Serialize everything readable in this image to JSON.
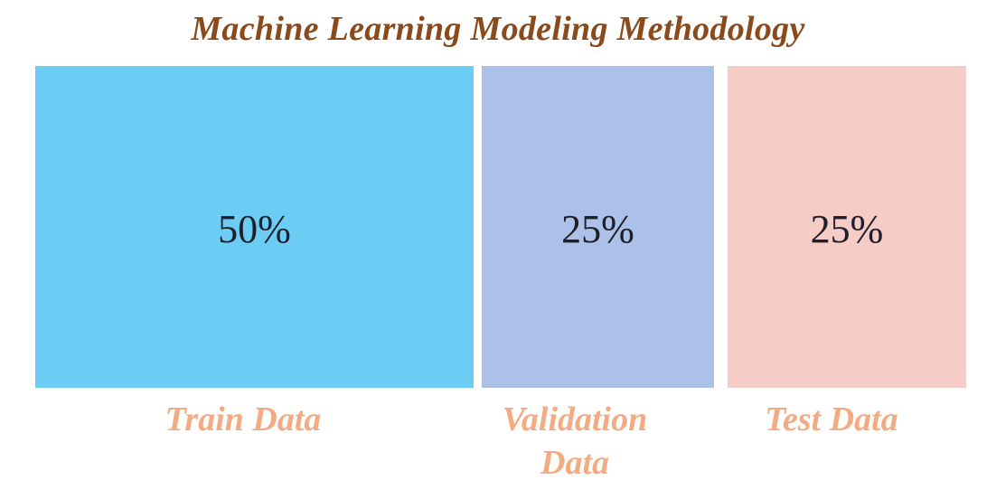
{
  "title": "Machine Learning Modeling Methodology",
  "colors": {
    "title": "#8a4a1c",
    "label": "#f2ab82",
    "train": "#6bcdf3",
    "validation": "#acc1e7",
    "test": "#f6ccc7"
  },
  "segments": [
    {
      "percent_label": "50%",
      "label_lines": [
        "Train Data"
      ],
      "share": 50
    },
    {
      "percent_label": "25%",
      "label_lines": [
        "Validation",
        "Data"
      ],
      "share": 25
    },
    {
      "percent_label": "25%",
      "label_lines": [
        "Test Data"
      ],
      "share": 25
    }
  ]
}
